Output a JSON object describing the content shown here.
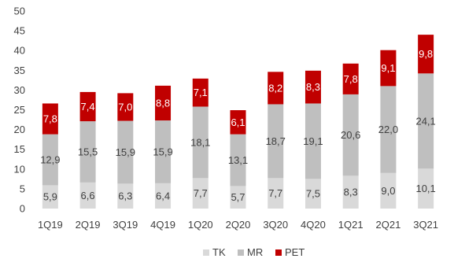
{
  "chart_data": {
    "type": "bar",
    "stacked": true,
    "categories": [
      "1Q19",
      "2Q19",
      "3Q19",
      "4Q19",
      "1Q20",
      "2Q20",
      "3Q20",
      "4Q20",
      "1Q21",
      "2Q21",
      "3Q21"
    ],
    "series": [
      {
        "name": "TK",
        "values": [
          5.9,
          6.6,
          6.3,
          6.4,
          7.7,
          5.7,
          7.7,
          7.5,
          8.3,
          9.0,
          10.1
        ],
        "labels": [
          "5,9",
          "6,6",
          "6,3",
          "6,4",
          "7,7",
          "5,7",
          "7,7",
          "7,5",
          "8,3",
          "9,0",
          "10,1"
        ],
        "color": "#d9d9d9",
        "label_color": "#404040"
      },
      {
        "name": "MR",
        "values": [
          12.9,
          15.5,
          15.9,
          15.9,
          18.1,
          13.1,
          18.7,
          19.1,
          20.6,
          22.0,
          24.1
        ],
        "labels": [
          "12,9",
          "15,5",
          "15,9",
          "15,9",
          "18,1",
          "13,1",
          "18,7",
          "19,1",
          "20,6",
          "22,0",
          "24,1"
        ],
        "color": "#bfbfbf",
        "label_color": "#404040"
      },
      {
        "name": "PET",
        "values": [
          7.8,
          7.4,
          7.0,
          8.8,
          7.1,
          6.1,
          8.2,
          8.3,
          7.8,
          9.1,
          9.8
        ],
        "labels": [
          "7,8",
          "7,4",
          "7,0",
          "8,8",
          "7,1",
          "6,1",
          "8,2",
          "8,3",
          "7,8",
          "9,1",
          "9,8"
        ],
        "color": "#c00000",
        "label_color": "#ffffff"
      }
    ],
    "yticks": [
      "0",
      "5",
      "10",
      "15",
      "20",
      "25",
      "30",
      "35",
      "40",
      "45",
      "50"
    ],
    "ylim": [
      0,
      50
    ],
    "grid": false,
    "legend_position": "bottom"
  }
}
